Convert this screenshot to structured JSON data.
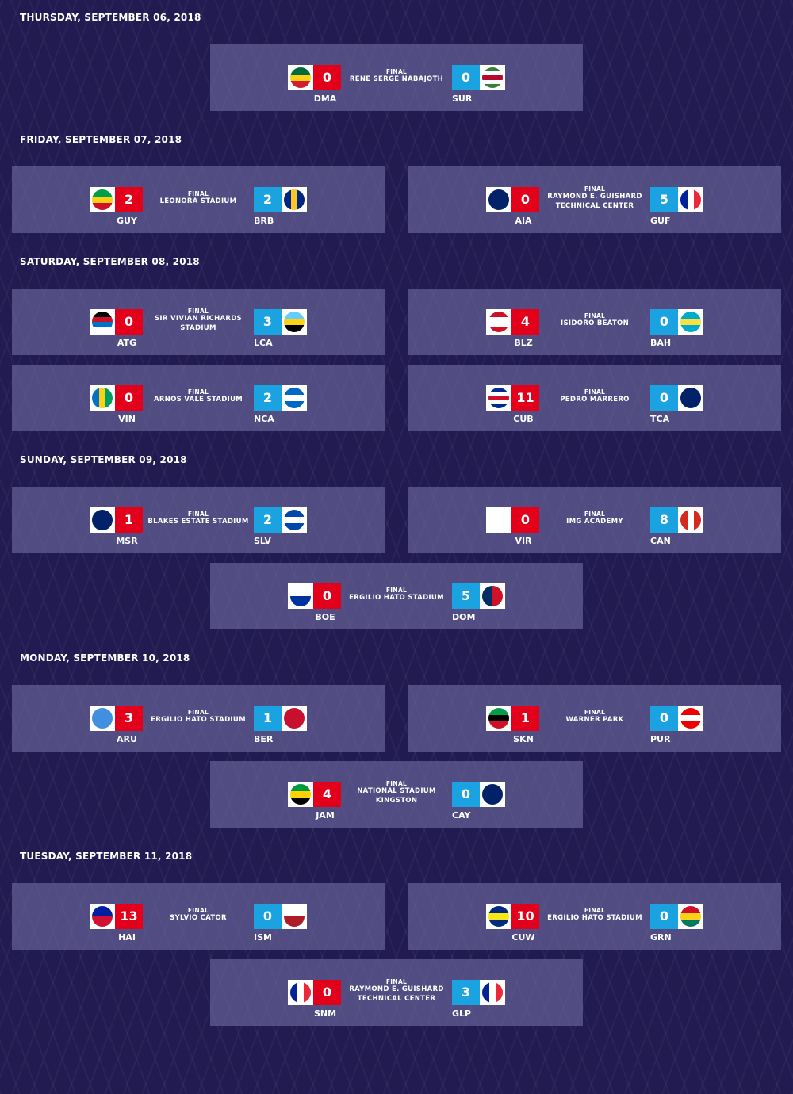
{
  "days": [
    {
      "date": "THURSDAY, SEPTEMBER 06, 2018",
      "matches": [
        {
          "status": "FINAL",
          "venue": [
            "RENE SERGE NABAJOTH"
          ],
          "home": {
            "code": "DMA",
            "score": 0
          },
          "away": {
            "code": "SUR",
            "score": 0
          }
        }
      ]
    },
    {
      "date": "FRIDAY, SEPTEMBER 07, 2018",
      "matches": [
        {
          "status": "FINAL",
          "venue": [
            "LEONORA STADIUM"
          ],
          "home": {
            "code": "GUY",
            "score": 2
          },
          "away": {
            "code": "BRB",
            "score": 2
          }
        },
        {
          "status": "FINAL",
          "venue": [
            "RAYMOND E. GUISHARD",
            "TECHNICAL CENTER"
          ],
          "home": {
            "code": "AIA",
            "score": 0
          },
          "away": {
            "code": "GUF",
            "score": 5
          }
        }
      ]
    },
    {
      "date": "SATURDAY, SEPTEMBER 08, 2018",
      "matches": [
        {
          "status": "FINAL",
          "venue": [
            "SIR VIVIAN RICHARDS",
            "STADIUM"
          ],
          "home": {
            "code": "ATG",
            "score": 0
          },
          "away": {
            "code": "LCA",
            "score": 3
          }
        },
        {
          "status": "FINAL",
          "venue": [
            "ISIDORO BEATON"
          ],
          "home": {
            "code": "BLZ",
            "score": 4
          },
          "away": {
            "code": "BAH",
            "score": 0
          }
        },
        {
          "status": "FINAL",
          "venue": [
            "ARNOS VALE STADIUM"
          ],
          "home": {
            "code": "VIN",
            "score": 0
          },
          "away": {
            "code": "NCA",
            "score": 2
          }
        },
        {
          "status": "FINAL",
          "venue": [
            "PEDRO MARRERO"
          ],
          "home": {
            "code": "CUB",
            "score": 11
          },
          "away": {
            "code": "TCA",
            "score": 0
          }
        }
      ]
    },
    {
      "date": "SUNDAY, SEPTEMBER 09, 2018",
      "matches": [
        {
          "status": "FINAL",
          "venue": [
            "BLAKES ESTATE STADIUM"
          ],
          "home": {
            "code": "MSR",
            "score": 1
          },
          "away": {
            "code": "SLV",
            "score": 2
          }
        },
        {
          "status": "FINAL",
          "venue": [
            "IMG ACADEMY"
          ],
          "home": {
            "code": "VIR",
            "score": 0
          },
          "away": {
            "code": "CAN",
            "score": 8
          }
        },
        {
          "status": "FINAL",
          "venue": [
            "ERGILIO HATO STADIUM"
          ],
          "home": {
            "code": "BOE",
            "score": 0
          },
          "away": {
            "code": "DOM",
            "score": 5
          }
        }
      ]
    },
    {
      "date": "MONDAY, SEPTEMBER 10, 2018",
      "matches": [
        {
          "status": "FINAL",
          "venue": [
            "ERGILIO HATO STADIUM"
          ],
          "home": {
            "code": "ARU",
            "score": 3
          },
          "away": {
            "code": "BER",
            "score": 1
          }
        },
        {
          "status": "FINAL",
          "venue": [
            "WARNER PARK"
          ],
          "home": {
            "code": "SKN",
            "score": 1
          },
          "away": {
            "code": "PUR",
            "score": 0
          }
        },
        {
          "status": "FINAL",
          "venue": [
            "NATIONAL STADIUM",
            "KINGSTON"
          ],
          "home": {
            "code": "JAM",
            "score": 4
          },
          "away": {
            "code": "CAY",
            "score": 0
          }
        }
      ]
    },
    {
      "date": "TUESDAY, SEPTEMBER 11, 2018",
      "matches": [
        {
          "status": "FINAL",
          "venue": [
            "SYLVIO CATOR"
          ],
          "home": {
            "code": "HAI",
            "score": 13
          },
          "away": {
            "code": "ISM",
            "score": 0
          }
        },
        {
          "status": "FINAL",
          "venue": [
            "ERGILIO HATO STADIUM"
          ],
          "home": {
            "code": "CUW",
            "score": 10
          },
          "away": {
            "code": "GRN",
            "score": 0
          }
        },
        {
          "status": "FINAL",
          "venue": [
            "RAYMOND E. GUISHARD",
            "TECHNICAL CENTER"
          ],
          "home": {
            "code": "SNM",
            "score": 0
          },
          "away": {
            "code": "GLP",
            "score": 3
          }
        }
      ]
    }
  ]
}
